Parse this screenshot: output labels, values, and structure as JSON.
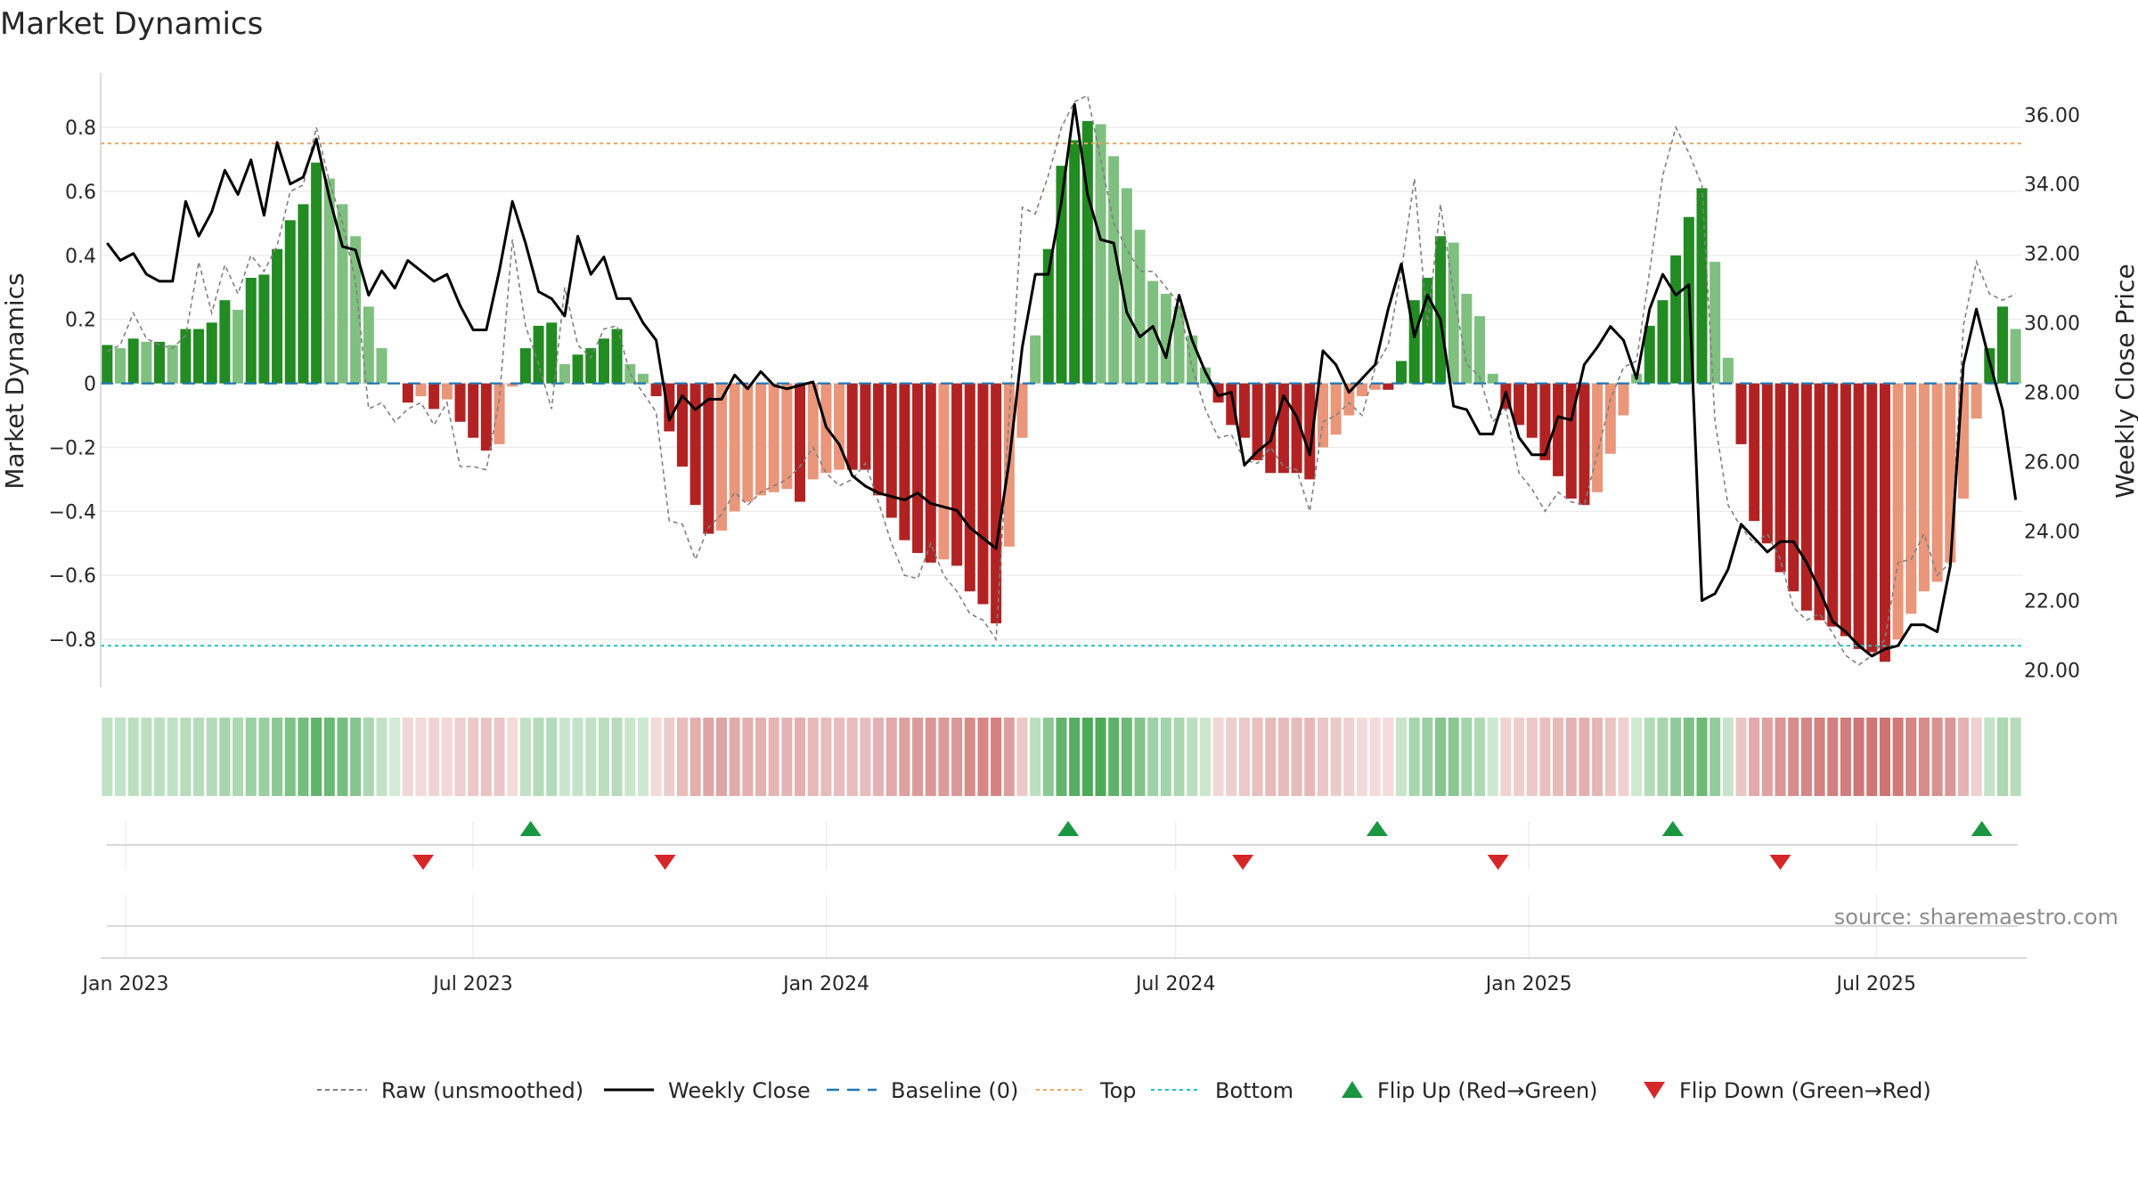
{
  "title": "Market Dynamics",
  "source": "source: sharemaestro.com",
  "colors": {
    "pos_strong": "#228b22",
    "pos_light": "#7fbf7f",
    "neg_strong": "#b22222",
    "neg_light": "#e9967a",
    "close": "#000000",
    "raw": "#808080",
    "baseline": "#1f77b4",
    "top": "#f4a460",
    "bottom": "#20c0c0",
    "flip_up": "#1a9641",
    "flip_down": "#d62728"
  },
  "legend": [
    {
      "key": "raw",
      "label": "Raw (unsmoothed)"
    },
    {
      "key": "close",
      "label": "Weekly Close"
    },
    {
      "key": "baseline",
      "label": "Baseline (0)"
    },
    {
      "key": "top",
      "label": "Top"
    },
    {
      "key": "bottom",
      "label": "Bottom"
    },
    {
      "key": "flip_up",
      "label": "Flip Up (Red→Green)"
    },
    {
      "key": "flip_down",
      "label": "Flip Down (Green→Red)"
    }
  ],
  "chart_data": {
    "type": "bar",
    "ylabel": "Market Dynamics",
    "y2label": "Weekly Close Price",
    "ylim": [
      -0.95,
      0.97
    ],
    "y2lim": [
      19.5,
      37.2
    ],
    "yticks": [
      0.8,
      0.6,
      0.4,
      0.2,
      0,
      -0.2,
      -0.4,
      -0.6,
      -0.8
    ],
    "ytick_labels": [
      "0.8",
      "0.6",
      "0.4",
      "0.2",
      "0",
      "−0.2",
      "−0.4",
      "−0.6",
      "−0.8"
    ],
    "y2ticks": [
      36,
      34,
      32,
      30,
      28,
      26,
      24,
      22,
      20
    ],
    "y2tick_labels": [
      "36.00",
      "34.00",
      "32.00",
      "30.00",
      "28.00",
      "26.00",
      "24.00",
      "22.00",
      "20.00"
    ],
    "x_start": "2022-12-19",
    "x_end": "2025-09-15",
    "x_ticks": [
      {
        "date": "2023-01-01",
        "label": "Jan 2023"
      },
      {
        "date": "2023-07-01",
        "label": "Jul 2023"
      },
      {
        "date": "2024-01-01",
        "label": "Jan 2024"
      },
      {
        "date": "2024-07-01",
        "label": "Jul 2024"
      },
      {
        "date": "2025-01-01",
        "label": "Jan 2025"
      },
      {
        "date": "2025-07-01",
        "label": "Jul 2025"
      }
    ],
    "top": 0.75,
    "bottom": -0.82,
    "baseline": 0,
    "grid": true,
    "legend_position": "bottom",
    "dynamics": [
      0.12,
      0.11,
      0.14,
      0.13,
      0.13,
      0.12,
      0.17,
      0.17,
      0.19,
      0.26,
      0.23,
      0.33,
      0.34,
      0.42,
      0.51,
      0.56,
      0.69,
      0.64,
      0.56,
      0.46,
      0.24,
      0.11,
      0,
      -0.06,
      -0.04,
      -0.08,
      -0.05,
      -0.12,
      -0.17,
      -0.21,
      -0.19,
      -0.01,
      0.11,
      0.18,
      0.19,
      0.06,
      0.09,
      0.11,
      0.14,
      0.17,
      0.06,
      0.03,
      -0.04,
      -0.15,
      -0.26,
      -0.38,
      -0.47,
      -0.46,
      -0.4,
      -0.37,
      -0.35,
      -0.34,
      -0.33,
      -0.37,
      -0.3,
      -0.28,
      -0.27,
      -0.27,
      -0.27,
      -0.35,
      -0.42,
      -0.49,
      -0.53,
      -0.56,
      -0.55,
      -0.57,
      -0.65,
      -0.69,
      -0.75,
      -0.51,
      -0.17,
      0.15,
      0.42,
      0.68,
      0.76,
      0.82,
      0.81,
      0.71,
      0.61,
      0.48,
      0.32,
      0.28,
      0.24,
      0.15,
      0.05,
      -0.06,
      -0.13,
      -0.17,
      -0.24,
      -0.28,
      -0.28,
      -0.28,
      -0.3,
      -0.2,
      -0.16,
      -0.1,
      -0.04,
      -0.02,
      -0.02,
      0.07,
      0.26,
      0.33,
      0.46,
      0.44,
      0.28,
      0.21,
      0.03,
      -0.08,
      -0.13,
      -0.17,
      -0.24,
      -0.29,
      -0.36,
      -0.38,
      -0.34,
      -0.22,
      -0.1,
      0.03,
      0.18,
      0.26,
      0.4,
      0.52,
      0.61,
      0.38,
      0.08,
      -0.19,
      -0.43,
      -0.5,
      -0.59,
      -0.65,
      -0.71,
      -0.74,
      -0.76,
      -0.79,
      -0.83,
      -0.84,
      -0.87,
      -0.8,
      -0.72,
      -0.65,
      -0.62,
      -0.56,
      -0.36,
      -0.11,
      0.11,
      0.24,
      0.17
    ],
    "raw": [
      0.1,
      0.12,
      0.22,
      0.14,
      0.12,
      0.11,
      0.15,
      0.38,
      0.22,
      0.37,
      0.28,
      0.4,
      0.35,
      0.43,
      0.6,
      0.62,
      0.8,
      0.63,
      0.5,
      0.32,
      -0.08,
      -0.06,
      -0.12,
      -0.08,
      -0.06,
      -0.13,
      -0.06,
      -0.26,
      -0.26,
      -0.27,
      -0.05,
      0.45,
      0.18,
      0.06,
      -0.08,
      0.3,
      0.12,
      0.08,
      0.17,
      0.18,
      0.03,
      -0.03,
      -0.09,
      -0.43,
      -0.44,
      -0.55,
      -0.45,
      -0.41,
      -0.34,
      -0.38,
      -0.34,
      -0.32,
      -0.3,
      -0.26,
      -0.2,
      -0.28,
      -0.32,
      -0.3,
      -0.25,
      -0.37,
      -0.5,
      -0.6,
      -0.61,
      -0.5,
      -0.6,
      -0.65,
      -0.72,
      -0.74,
      -0.8,
      -0.1,
      0.55,
      0.53,
      0.65,
      0.8,
      0.88,
      0.9,
      0.7,
      0.5,
      0.42,
      0.35,
      0.35,
      0.3,
      0.25,
      0.05,
      -0.08,
      -0.17,
      -0.16,
      -0.24,
      -0.25,
      -0.2,
      -0.26,
      -0.27,
      -0.4,
      -0.12,
      -0.1,
      -0.06,
      -0.1,
      0.05,
      0.12,
      0.35,
      0.64,
      0.18,
      0.56,
      0.28,
      0.06,
      0.02,
      -0.12,
      -0.08,
      -0.28,
      -0.33,
      -0.4,
      -0.34,
      -0.37,
      -0.38,
      -0.22,
      -0.05,
      0.05,
      0.07,
      0.35,
      0.65,
      0.8,
      0.72,
      0.62,
      -0.12,
      -0.38,
      -0.45,
      -0.5,
      -0.47,
      -0.55,
      -0.7,
      -0.74,
      -0.72,
      -0.78,
      -0.85,
      -0.88,
      -0.85,
      -0.8,
      -0.56,
      -0.55,
      -0.47,
      -0.6,
      -0.56,
      0.18,
      0.38,
      0.28,
      0.26,
      0.28
    ],
    "close": [
      32.3,
      31.8,
      32,
      31.4,
      31.2,
      31.2,
      33.5,
      32.5,
      33.2,
      34.4,
      33.7,
      34.7,
      33.1,
      35.2,
      34,
      34.2,
      35.3,
      33.6,
      32.2,
      32.1,
      30.8,
      31.5,
      31,
      31.8,
      31.5,
      31.2,
      31.4,
      30.5,
      29.8,
      29.8,
      31.5,
      33.5,
      32.3,
      30.9,
      30.7,
      30.2,
      32.5,
      31.4,
      31.9,
      30.7,
      30.7,
      30,
      29.5,
      27.2,
      27.9,
      27.5,
      27.8,
      27.8,
      28.5,
      28.1,
      28.6,
      28.2,
      28.1,
      28.2,
      28.3,
      27,
      26.5,
      25.6,
      25.3,
      25.1,
      25,
      24.9,
      25.1,
      24.8,
      24.7,
      24.6,
      24.1,
      23.8,
      23.5,
      26,
      29.3,
      31.4,
      31.4,
      33.5,
      36.3,
      33.7,
      32.4,
      32.3,
      30.3,
      29.6,
      29.9,
      29,
      30.8,
      29.5,
      28.6,
      27.9,
      28,
      25.9,
      26.3,
      26.6,
      27.9,
      27.3,
      26.2,
      29.2,
      28.8,
      28,
      28.4,
      28.8,
      30.4,
      31.7,
      29.6,
      30.8,
      30.1,
      27.6,
      27.5,
      26.8,
      26.8,
      28,
      26.7,
      26.2,
      26.2,
      27.3,
      27.2,
      28.8,
      29.3,
      29.9,
      29.5,
      28.4,
      30.4,
      31.4,
      30.8,
      31.1,
      22,
      22.2,
      22.9,
      24.2,
      23.8,
      23.4,
      23.7,
      23.7,
      23.1,
      22.3,
      21.4,
      21.1,
      20.7,
      20.4,
      20.6,
      20.7,
      21.3,
      21.3,
      21.1,
      23,
      28.8,
      30.4,
      28.9,
      27.5,
      24.9
    ],
    "flip_up_dates": [
      "2023-07-31",
      "2024-05-06",
      "2024-10-14",
      "2025-03-17",
      "2025-08-25"
    ],
    "flip_down_dates": [
      "2023-06-05",
      "2023-10-09",
      "2024-08-05",
      "2024-12-16",
      "2025-05-12"
    ]
  }
}
